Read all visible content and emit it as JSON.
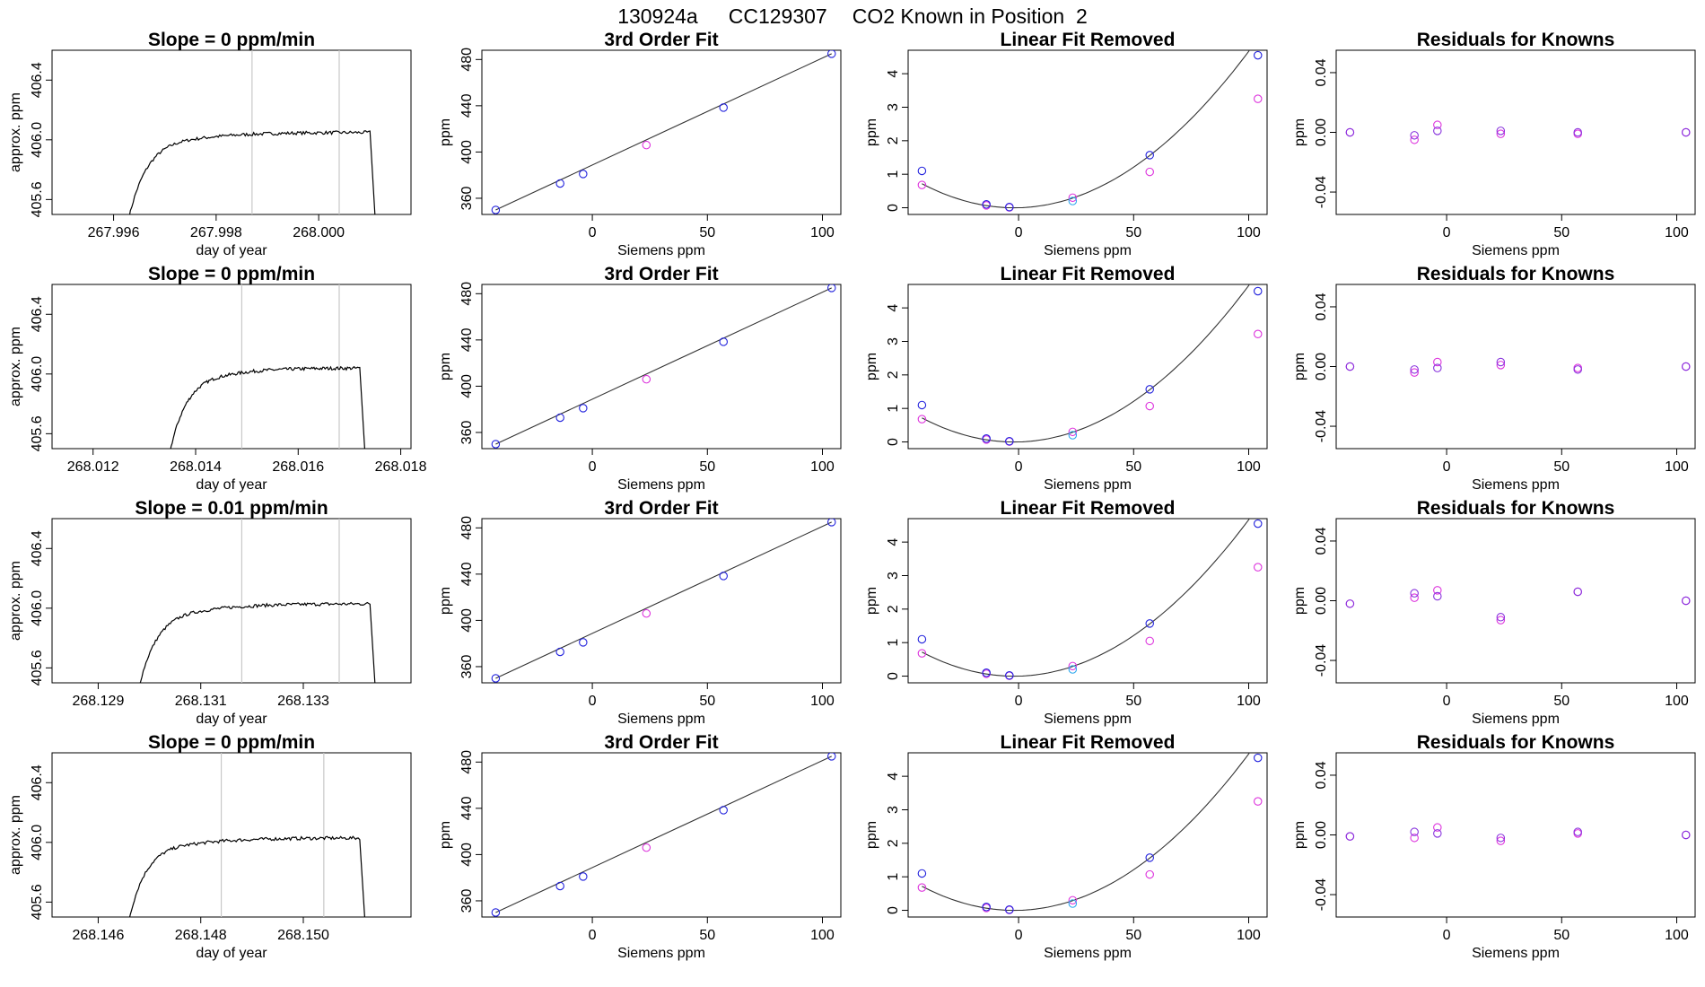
{
  "figure": {
    "title_id": "130924a",
    "title_tank": "CC129307",
    "title_desc": "CO2 Known in Position  2"
  },
  "colors": {
    "trace": "#000000",
    "window_line": "#c8c8c8",
    "points_blue": "#2222dd",
    "points_magenta": "#dd33dd",
    "points_cyan": "#33aaee",
    "points_purple": "#8833dd"
  },
  "chart_data": [
    {
      "type": "line",
      "panel": "time-series",
      "row": 1,
      "title": "Slope =  0  ppm/min",
      "xlabel": "day of year",
      "ylabel": "approx. ppm",
      "xlim": [
        267.9948,
        268.0018
      ],
      "ylim": [
        405.5,
        406.6
      ],
      "xticks": [
        267.996,
        267.998,
        268.0
      ],
      "xtick_labels": [
        "267.996",
        "267.998",
        "268.000"
      ],
      "yticks": [
        405.6,
        406.0,
        406.4
      ],
      "ytick_labels": [
        "405.6",
        "406.0",
        "406.4"
      ],
      "window_lines": [
        267.9987,
        268.0004
      ],
      "trace": {
        "x_start": 267.9963,
        "x_plateau": 267.9975,
        "x_end": 268.001,
        "x_drop": 268.0011,
        "start": 405.48,
        "plateau": 406.05,
        "end": 405.48
      }
    },
    {
      "type": "line",
      "panel": "3rd-order-fit",
      "row": 1,
      "title": "3rd Order Fit",
      "xlabel": "Siemens ppm",
      "ylabel": "ppm",
      "xlim": [
        -48,
        108
      ],
      "ylim": [
        346,
        488
      ],
      "xticks": [
        0,
        50,
        100
      ],
      "xtick_labels": [
        "0",
        "50",
        "100"
      ],
      "yticks": [
        360,
        400,
        440,
        480
      ],
      "ytick_labels": [
        "360",
        "400",
        "440",
        "480"
      ],
      "fit": {
        "x0": -42,
        "x1": 104,
        "y0": 349.9,
        "y1": 485.0
      },
      "points_blue": [
        [
          -42,
          349.9
        ],
        [
          -14,
          372.8
        ],
        [
          -4,
          381.0
        ],
        [
          57,
          438.4
        ],
        [
          104,
          485.0
        ]
      ],
      "points_magenta": [
        [
          23.5,
          406.0
        ]
      ]
    },
    {
      "type": "scatter",
      "panel": "linear-fit-removed",
      "row": 1,
      "title": "Linear Fit Removed",
      "xlabel": "Siemens ppm",
      "ylabel": "ppm",
      "xlim": [
        -48,
        108
      ],
      "ylim": [
        -0.2,
        4.7
      ],
      "xticks": [
        0,
        50,
        100
      ],
      "xtick_labels": [
        "0",
        "50",
        "100"
      ],
      "yticks": [
        0,
        1,
        2,
        3,
        4
      ],
      "ytick_labels": [
        "0",
        "1",
        "2",
        "3",
        "4"
      ],
      "curve": {
        "x0": -42,
        "x1": 104,
        "a": 0.000449,
        "b": 0.00175
      },
      "points_blue": [
        [
          -42,
          1.1
        ],
        [
          -14,
          0.1
        ],
        [
          -4,
          0.02
        ],
        [
          57,
          1.57
        ],
        [
          104,
          4.55
        ]
      ],
      "points_magenta": [
        [
          -42,
          0.68
        ],
        [
          -14,
          0.07
        ],
        [
          -4,
          0.01
        ],
        [
          23.5,
          0.3
        ],
        [
          57,
          1.07
        ],
        [
          104,
          3.25
        ]
      ],
      "points_cyan": [
        [
          23.5,
          0.2
        ]
      ]
    },
    {
      "type": "scatter",
      "panel": "residuals",
      "row": 1,
      "title": "Residuals for Knowns",
      "xlabel": "Siemens ppm",
      "ylabel": "ppm",
      "xlim": [
        -48,
        108
      ],
      "ylim": [
        -0.055,
        0.055
      ],
      "xticks": [
        0,
        50,
        100
      ],
      "xtick_labels": [
        "0",
        "50",
        "100"
      ],
      "yticks": [
        -0.04,
        0.0,
        0.04
      ],
      "ytick_labels": [
        "-0.04",
        "0.00",
        "0.04"
      ],
      "points_blue": [
        [
          -42,
          0.0
        ],
        [
          -14,
          -0.002
        ],
        [
          -4,
          0.001
        ],
        [
          23.5,
          0.001
        ],
        [
          57,
          0.0
        ],
        [
          104,
          0.0
        ]
      ],
      "points_magenta": [
        [
          -42,
          0.0
        ],
        [
          -14,
          -0.005
        ],
        [
          -4,
          0.005
        ],
        [
          23.5,
          -0.001
        ],
        [
          57,
          -0.001
        ],
        [
          104,
          0.0
        ]
      ]
    },
    {
      "type": "line",
      "panel": "time-series",
      "row": 2,
      "title": "Slope =  0  ppm/min",
      "xlabel": "day of year",
      "ylabel": "approx. ppm",
      "xlim": [
        268.0112,
        268.0182
      ],
      "ylim": [
        405.5,
        406.6
      ],
      "xticks": [
        268.012,
        268.014,
        268.016,
        268.018
      ],
      "xtick_labels": [
        "268.012",
        "268.014",
        "268.016",
        "268.018"
      ],
      "yticks": [
        405.6,
        406.0,
        406.4
      ],
      "ytick_labels": [
        "405.6",
        "406.0",
        "406.4"
      ],
      "window_lines": [
        268.0149,
        268.0168
      ],
      "trace": {
        "x_start": 268.0135,
        "x_plateau": 268.0146,
        "x_end": 268.0172,
        "x_drop": 268.0173,
        "start": 405.48,
        "plateau": 406.04,
        "end": 405.48
      }
    },
    {
      "type": "line",
      "panel": "3rd-order-fit",
      "row": 2,
      "title": "3rd Order Fit",
      "xlabel": "Siemens ppm",
      "ylabel": "ppm",
      "xlim": [
        -48,
        108
      ],
      "ylim": [
        346,
        488
      ],
      "xticks": [
        0,
        50,
        100
      ],
      "xtick_labels": [
        "0",
        "50",
        "100"
      ],
      "yticks": [
        360,
        400,
        440,
        480
      ],
      "ytick_labels": [
        "360",
        "400",
        "440",
        "480"
      ],
      "fit": {
        "x0": -42,
        "x1": 104,
        "y0": 349.9,
        "y1": 485.0
      },
      "points_blue": [
        [
          -42,
          349.9
        ],
        [
          -14,
          372.8
        ],
        [
          -4,
          381.0
        ],
        [
          57,
          438.4
        ],
        [
          104,
          485.0
        ]
      ],
      "points_magenta": [
        [
          23.5,
          406.0
        ]
      ]
    },
    {
      "type": "scatter",
      "panel": "linear-fit-removed",
      "row": 2,
      "title": "Linear Fit Removed",
      "xlabel": "Siemens ppm",
      "ylabel": "ppm",
      "xlim": [
        -48,
        108
      ],
      "ylim": [
        -0.2,
        4.7
      ],
      "xticks": [
        0,
        50,
        100
      ],
      "xtick_labels": [
        "0",
        "50",
        "100"
      ],
      "yticks": [
        0,
        1,
        2,
        3,
        4
      ],
      "ytick_labels": [
        "0",
        "1",
        "2",
        "3",
        "4"
      ],
      "curve": {
        "x0": -42,
        "x1": 104,
        "a": 0.000449,
        "b": 0.00175
      },
      "points_blue": [
        [
          -42,
          1.1
        ],
        [
          -14,
          0.1
        ],
        [
          -4,
          0.02
        ],
        [
          57,
          1.57
        ],
        [
          104,
          4.5
        ]
      ],
      "points_magenta": [
        [
          -42,
          0.68
        ],
        [
          -14,
          0.07
        ],
        [
          -4,
          0.01
        ],
        [
          23.5,
          0.3
        ],
        [
          57,
          1.07
        ],
        [
          104,
          3.22
        ]
      ],
      "points_cyan": [
        [
          23.5,
          0.2
        ]
      ]
    },
    {
      "type": "scatter",
      "panel": "residuals",
      "row": 2,
      "title": "Residuals for Knowns",
      "xlabel": "Siemens ppm",
      "ylabel": "ppm",
      "xlim": [
        -48,
        108
      ],
      "ylim": [
        -0.055,
        0.055
      ],
      "xticks": [
        0,
        50,
        100
      ],
      "xtick_labels": [
        "0",
        "50",
        "100"
      ],
      "yticks": [
        -0.04,
        0.0,
        0.04
      ],
      "ytick_labels": [
        "-0.04",
        "0.00",
        "0.04"
      ],
      "points_blue": [
        [
          -42,
          0.0
        ],
        [
          -14,
          -0.002
        ],
        [
          -4,
          -0.001
        ],
        [
          23.5,
          0.003
        ],
        [
          57,
          -0.002
        ],
        [
          104,
          0.0
        ]
      ],
      "points_magenta": [
        [
          -42,
          0.0
        ],
        [
          -14,
          -0.004
        ],
        [
          -4,
          0.003
        ],
        [
          23.5,
          0.001
        ],
        [
          57,
          -0.001
        ],
        [
          104,
          0.0
        ]
      ]
    },
    {
      "type": "line",
      "panel": "time-series",
      "row": 3,
      "title": "Slope =  0.01  ppm/min",
      "xlabel": "day of year",
      "ylabel": "approx. ppm",
      "xlim": [
        268.1281,
        268.1351
      ],
      "ylim": [
        405.5,
        406.6
      ],
      "xticks": [
        268.129,
        268.131,
        268.133
      ],
      "xtick_labels": [
        "268.129",
        "268.131",
        "268.133"
      ],
      "yticks": [
        405.6,
        406.0,
        406.4
      ],
      "ytick_labels": [
        "405.6",
        "406.0",
        "406.4"
      ],
      "window_lines": [
        268.1318,
        268.1337
      ],
      "trace": {
        "x_start": 268.1298,
        "x_plateau": 268.131,
        "x_end": 268.1343,
        "x_drop": 268.1344,
        "start": 405.48,
        "plateau": 406.03,
        "end": 405.48
      }
    },
    {
      "type": "line",
      "panel": "3rd-order-fit",
      "row": 3,
      "title": "3rd Order Fit",
      "xlabel": "Siemens ppm",
      "ylabel": "ppm",
      "xlim": [
        -48,
        108
      ],
      "ylim": [
        346,
        488
      ],
      "xticks": [
        0,
        50,
        100
      ],
      "xtick_labels": [
        "0",
        "50",
        "100"
      ],
      "yticks": [
        360,
        400,
        440,
        480
      ],
      "ytick_labels": [
        "360",
        "400",
        "440",
        "480"
      ],
      "fit": {
        "x0": -42,
        "x1": 104,
        "y0": 349.9,
        "y1": 485.0
      },
      "points_blue": [
        [
          -42,
          349.9
        ],
        [
          -14,
          372.8
        ],
        [
          -4,
          381.0
        ],
        [
          57,
          438.4
        ],
        [
          104,
          485.0
        ]
      ],
      "points_magenta": [
        [
          23.5,
          406.0
        ]
      ]
    },
    {
      "type": "scatter",
      "panel": "linear-fit-removed",
      "row": 3,
      "title": "Linear Fit Removed",
      "xlabel": "Siemens ppm",
      "ylabel": "ppm",
      "xlim": [
        -48,
        108
      ],
      "ylim": [
        -0.2,
        4.7
      ],
      "xticks": [
        0,
        50,
        100
      ],
      "xtick_labels": [
        "0",
        "50",
        "100"
      ],
      "yticks": [
        0,
        1,
        2,
        3,
        4
      ],
      "ytick_labels": [
        "0",
        "1",
        "2",
        "3",
        "4"
      ],
      "curve": {
        "x0": -42,
        "x1": 104,
        "a": 0.000449,
        "b": 0.00175
      },
      "points_blue": [
        [
          -42,
          1.1
        ],
        [
          -14,
          0.1
        ],
        [
          -4,
          0.02
        ],
        [
          57,
          1.57
        ],
        [
          104,
          4.55
        ]
      ],
      "points_magenta": [
        [
          -42,
          0.68
        ],
        [
          -14,
          0.07
        ],
        [
          -4,
          0.01
        ],
        [
          23.5,
          0.3
        ],
        [
          57,
          1.05
        ],
        [
          104,
          3.25
        ]
      ],
      "points_cyan": [
        [
          23.5,
          0.2
        ]
      ]
    },
    {
      "type": "scatter",
      "panel": "residuals",
      "row": 3,
      "title": "Residuals for Knowns",
      "xlabel": "Siemens ppm",
      "ylabel": "ppm",
      "xlim": [
        -48,
        108
      ],
      "ylim": [
        -0.055,
        0.055
      ],
      "xticks": [
        0,
        50,
        100
      ],
      "xtick_labels": [
        "0",
        "50",
        "100"
      ],
      "yticks": [
        -0.04,
        0.0,
        0.04
      ],
      "ytick_labels": [
        "-0.04",
        "0.00",
        "0.04"
      ],
      "points_blue": [
        [
          -42,
          -0.002
        ],
        [
          -14,
          0.005
        ],
        [
          -4,
          0.003
        ],
        [
          23.5,
          -0.011
        ],
        [
          57,
          0.006
        ],
        [
          104,
          0.0
        ]
      ],
      "points_magenta": [
        [
          -42,
          -0.002
        ],
        [
          -14,
          0.002
        ],
        [
          -4,
          0.007
        ],
        [
          23.5,
          -0.013
        ],
        [
          57,
          0.006
        ],
        [
          104,
          0.0
        ]
      ]
    },
    {
      "type": "line",
      "panel": "time-series",
      "row": 4,
      "title": "Slope =  0  ppm/min",
      "xlabel": "day of year",
      "ylabel": "approx. ppm",
      "xlim": [
        268.1451,
        268.1521
      ],
      "ylim": [
        405.5,
        406.6
      ],
      "xticks": [
        268.146,
        268.148,
        268.15
      ],
      "xtick_labels": [
        "268.146",
        "268.148",
        "268.150"
      ],
      "yticks": [
        405.6,
        406.0,
        406.4
      ],
      "ytick_labels": [
        "405.6",
        "406.0",
        "406.4"
      ],
      "window_lines": [
        268.1484,
        268.1504
      ],
      "trace": {
        "x_start": 268.1466,
        "x_plateau": 268.1477,
        "x_end": 268.1511,
        "x_drop": 268.1512,
        "start": 405.48,
        "plateau": 406.03,
        "end": 405.48
      }
    },
    {
      "type": "line",
      "panel": "3rd-order-fit",
      "row": 4,
      "title": "3rd Order Fit",
      "xlabel": "Siemens ppm",
      "ylabel": "ppm",
      "xlim": [
        -48,
        108
      ],
      "ylim": [
        346,
        488
      ],
      "xticks": [
        0,
        50,
        100
      ],
      "xtick_labels": [
        "0",
        "50",
        "100"
      ],
      "yticks": [
        360,
        400,
        440,
        480
      ],
      "ytick_labels": [
        "360",
        "400",
        "440",
        "480"
      ],
      "fit": {
        "x0": -42,
        "x1": 104,
        "y0": 349.9,
        "y1": 485.0
      },
      "points_blue": [
        [
          -42,
          349.9
        ],
        [
          -14,
          372.8
        ],
        [
          -4,
          381.0
        ],
        [
          57,
          438.4
        ],
        [
          104,
          485.0
        ]
      ],
      "points_magenta": [
        [
          23.5,
          406.0
        ]
      ]
    },
    {
      "type": "scatter",
      "panel": "linear-fit-removed",
      "row": 4,
      "title": "Linear Fit Removed",
      "xlabel": "Siemens ppm",
      "ylabel": "ppm",
      "xlim": [
        -48,
        108
      ],
      "ylim": [
        -0.2,
        4.7
      ],
      "xticks": [
        0,
        50,
        100
      ],
      "xtick_labels": [
        "0",
        "50",
        "100"
      ],
      "yticks": [
        0,
        1,
        2,
        3,
        4
      ],
      "ytick_labels": [
        "0",
        "1",
        "2",
        "3",
        "4"
      ],
      "curve": {
        "x0": -42,
        "x1": 104,
        "a": 0.000449,
        "b": 0.00175
      },
      "points_blue": [
        [
          -42,
          1.1
        ],
        [
          -14,
          0.1
        ],
        [
          -4,
          0.02
        ],
        [
          57,
          1.57
        ],
        [
          104,
          4.55
        ]
      ],
      "points_magenta": [
        [
          -42,
          0.68
        ],
        [
          -14,
          0.07
        ],
        [
          -4,
          0.01
        ],
        [
          23.5,
          0.3
        ],
        [
          57,
          1.07
        ],
        [
          104,
          3.25
        ]
      ],
      "points_cyan": [
        [
          23.5,
          0.2
        ]
      ]
    },
    {
      "type": "scatter",
      "panel": "residuals",
      "row": 4,
      "title": "Residuals for Knowns",
      "xlabel": "Siemens ppm",
      "ylabel": "ppm",
      "xlim": [
        -48,
        108
      ],
      "ylim": [
        -0.055,
        0.055
      ],
      "xticks": [
        0,
        50,
        100
      ],
      "xtick_labels": [
        "0",
        "50",
        "100"
      ],
      "yticks": [
        -0.04,
        0.0,
        0.04
      ],
      "ytick_labels": [
        "-0.04",
        "0.00",
        "0.04"
      ],
      "points_blue": [
        [
          -42,
          -0.001
        ],
        [
          -14,
          0.002
        ],
        [
          -4,
          0.001
        ],
        [
          23.5,
          -0.002
        ],
        [
          57,
          0.002
        ],
        [
          104,
          0.0
        ]
      ],
      "points_magenta": [
        [
          -42,
          -0.001
        ],
        [
          -14,
          -0.002
        ],
        [
          -4,
          0.005
        ],
        [
          23.5,
          -0.004
        ],
        [
          57,
          0.001
        ],
        [
          104,
          0.0
        ]
      ]
    }
  ]
}
